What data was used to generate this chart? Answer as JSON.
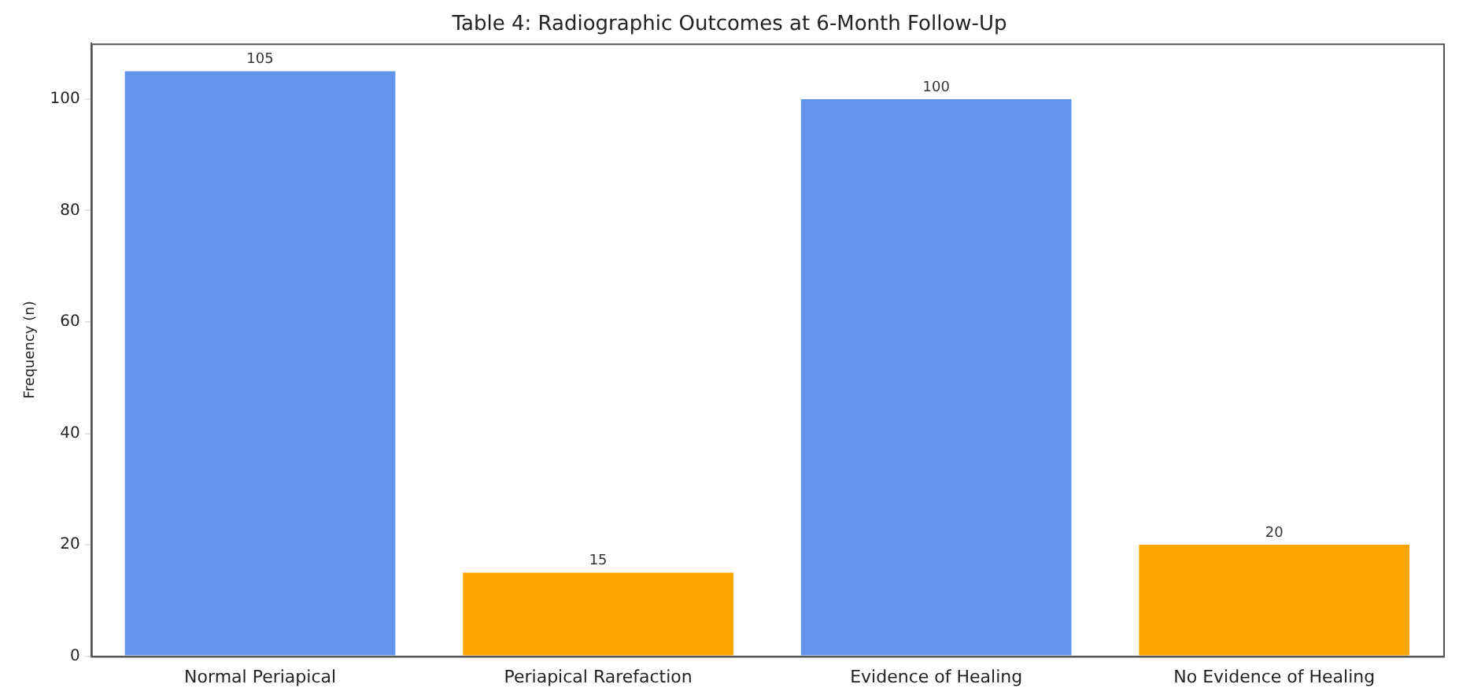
{
  "chart_data": {
    "type": "bar",
    "title": "Table 4: Radiographic Outcomes at 6-Month Follow-Up",
    "ylabel": "Frequency (n)",
    "categories": [
      "Normal Periapical",
      "Periapical Rarefaction",
      "Evidence of Healing",
      "No Evidence of Healing"
    ],
    "values": [
      105,
      15,
      100,
      20
    ],
    "colors": [
      "#6495ed",
      "#ffa500",
      "#6495ed",
      "#ffa500"
    ],
    "ylim": [
      0,
      110
    ],
    "yticks": [
      0,
      20,
      40,
      60,
      80,
      100
    ],
    "data_labels": true,
    "grid": false,
    "legend": false
  }
}
